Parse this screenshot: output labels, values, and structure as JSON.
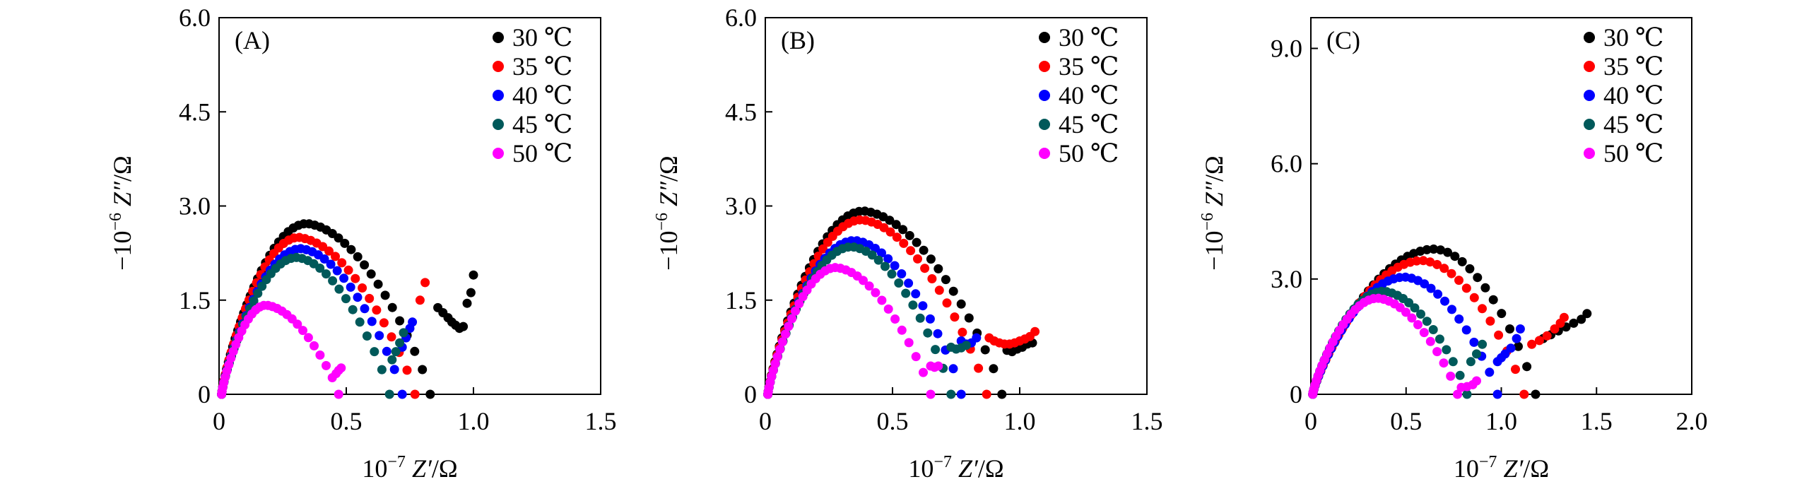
{
  "chart_data": [
    {
      "type": "scatter",
      "panel_label": "(A)",
      "xlabel_prefix": "10",
      "xlabel_exp": "−7",
      "xlabel_var": "Z′",
      "xlabel_unit": "/Ω",
      "ylabel_prefix": "−10",
      "ylabel_exp": "−6",
      "ylabel_var": "Z″",
      "ylabel_unit": "/Ω",
      "xlim": [
        0,
        1.5
      ],
      "ylim": [
        0,
        6.0
      ],
      "xticks": [
        0,
        0.5,
        1.0,
        1.5
      ],
      "xtick_labels": [
        "0",
        "0.5",
        "1.0",
        "1.5"
      ],
      "yticks": [
        0,
        1.5,
        3.0,
        4.5,
        6.0
      ],
      "ytick_labels": [
        "0",
        "1.5",
        "3.0",
        "4.5",
        "6.0"
      ],
      "legend_position": "top-right",
      "series": [
        {
          "name": "30 ℃",
          "color": "#000000",
          "shape": {
            "type": "arc",
            "rs": 0.01,
            "rmax": 0.83,
            "peak": 2.72,
            "peakfrac": 0.41,
            "n": 46,
            "tail": [
              [
                0.86,
                1.38
              ],
              [
                0.88,
                1.3
              ],
              [
                0.9,
                1.22
              ],
              [
                0.915,
                1.15
              ],
              [
                0.93,
                1.1
              ],
              [
                0.945,
                1.05
              ],
              [
                0.96,
                1.08
              ],
              [
                0.975,
                1.45
              ],
              [
                0.99,
                1.62
              ],
              [
                1.0,
                1.9
              ]
            ]
          }
        },
        {
          "name": "35 ℃",
          "color": "#ff0000",
          "shape": {
            "type": "arc",
            "rs": 0.01,
            "rmax": 0.77,
            "peak": 2.5,
            "peakfrac": 0.4,
            "n": 42,
            "tail": [
              [
                0.79,
                1.5
              ],
              [
                0.81,
                1.78
              ]
            ]
          }
        },
        {
          "name": "40 ℃",
          "color": "#0000ff",
          "shape": {
            "type": "arc",
            "rs": 0.01,
            "rmax": 0.72,
            "peak": 2.32,
            "peakfrac": 0.44,
            "n": 40,
            "tail": [
              [
                0.72,
                0.75
              ],
              [
                0.735,
                0.9
              ],
              [
                0.75,
                1.05
              ],
              [
                0.76,
                1.15
              ]
            ]
          }
        },
        {
          "name": "45 ℃",
          "color": "#00595a",
          "shape": {
            "type": "arc",
            "rs": 0.01,
            "rmax": 0.67,
            "peak": 2.18,
            "peakfrac": 0.45,
            "n": 38,
            "tail": [
              [
                0.68,
                0.55
              ],
              [
                0.695,
                0.68
              ],
              [
                0.71,
                0.82
              ],
              [
                0.725,
                0.98
              ]
            ]
          }
        },
        {
          "name": "50 ℃",
          "color": "#ff00ff",
          "shape": {
            "type": "arc",
            "rs": 0.01,
            "rmax": 0.47,
            "peak": 1.42,
            "peakfrac": 0.38,
            "n": 32,
            "tail": [
              [
                0.46,
                0.33
              ],
              [
                0.47,
                0.38
              ],
              [
                0.48,
                0.42
              ]
            ]
          }
        }
      ]
    },
    {
      "type": "scatter",
      "panel_label": "(B)",
      "xlabel_prefix": "10",
      "xlabel_exp": "−7",
      "xlabel_var": "Z′",
      "xlabel_unit": "/Ω",
      "ylabel_prefix": "−10",
      "ylabel_exp": "−6",
      "ylabel_var": "Z″",
      "ylabel_unit": "/Ω",
      "xlim": [
        0,
        1.5
      ],
      "ylim": [
        0,
        6.0
      ],
      "xticks": [
        0,
        0.5,
        1.0,
        1.5
      ],
      "xtick_labels": [
        "0",
        "0.5",
        "1.0",
        "1.5"
      ],
      "yticks": [
        0,
        1.5,
        3.0,
        4.5,
        6.0
      ],
      "ytick_labels": [
        "0",
        "1.5",
        "3.0",
        "4.5",
        "6.0"
      ],
      "legend_position": "top-right",
      "series": [
        {
          "name": "30 ℃",
          "color": "#000000",
          "shape": {
            "type": "arc",
            "rs": 0.01,
            "rmax": 0.93,
            "peak": 2.92,
            "peakfrac": 0.41,
            "n": 48,
            "tail": [
              [
                0.95,
                0.7
              ],
              [
                0.97,
                0.68
              ],
              [
                0.99,
                0.72
              ],
              [
                1.01,
                0.75
              ],
              [
                1.03,
                0.8
              ],
              [
                1.05,
                0.82
              ]
            ]
          }
        },
        {
          "name": "35 ℃",
          "color": "#ff0000",
          "shape": {
            "type": "arc",
            "rs": 0.01,
            "rmax": 0.87,
            "peak": 2.78,
            "peakfrac": 0.43,
            "n": 46,
            "tail": [
              [
                0.88,
                0.9
              ],
              [
                0.9,
                0.85
              ],
              [
                0.92,
                0.82
              ],
              [
                0.94,
                0.8
              ],
              [
                0.96,
                0.8
              ],
              [
                0.98,
                0.82
              ],
              [
                1.0,
                0.85
              ],
              [
                1.02,
                0.88
              ],
              [
                1.04,
                0.92
              ],
              [
                1.06,
                1.0
              ]
            ]
          }
        },
        {
          "name": "40 ℃",
          "color": "#0000ff",
          "shape": {
            "type": "arc",
            "rs": 0.01,
            "rmax": 0.77,
            "peak": 2.45,
            "peakfrac": 0.45,
            "n": 42,
            "tail": [
              [
                0.77,
                0.85
              ],
              [
                0.79,
                0.8
              ],
              [
                0.81,
                0.82
              ],
              [
                0.83,
                0.9
              ]
            ]
          }
        },
        {
          "name": "45 ℃",
          "color": "#00595a",
          "shape": {
            "type": "arc",
            "rs": 0.01,
            "rmax": 0.73,
            "peak": 2.35,
            "peakfrac": 0.46,
            "n": 40,
            "tail": [
              [
                0.73,
                0.75
              ],
              [
                0.75,
                0.72
              ],
              [
                0.77,
                0.74
              ],
              [
                0.79,
                0.78
              ]
            ]
          }
        },
        {
          "name": "50 ℃",
          "color": "#ff00ff",
          "shape": {
            "type": "arc",
            "rs": 0.01,
            "rmax": 0.65,
            "peak": 2.02,
            "peakfrac": 0.42,
            "n": 38,
            "tail": [
              [
                0.65,
                0.45
              ],
              [
                0.665,
                0.43
              ],
              [
                0.68,
                0.45
              ]
            ]
          }
        }
      ]
    },
    {
      "type": "scatter",
      "panel_label": "(C)",
      "xlabel_prefix": "10",
      "xlabel_exp": "−7",
      "xlabel_var": "Z′",
      "xlabel_unit": "/Ω",
      "ylabel_prefix": "−10",
      "ylabel_exp": "−6",
      "ylabel_var": "Z″",
      "ylabel_unit": "/Ω",
      "xlim": [
        0,
        2.0
      ],
      "ylim": [
        0,
        9.8
      ],
      "xticks": [
        0,
        0.5,
        1.0,
        1.5,
        2.0
      ],
      "xtick_labels": [
        "0",
        "0.5",
        "1.0",
        "1.5",
        "2.0"
      ],
      "yticks": [
        0,
        3.0,
        6.0,
        9.0
      ],
      "ytick_labels": [
        "0",
        "3.0",
        "6.0",
        "9.0"
      ],
      "legend_position": "top-right",
      "series": [
        {
          "name": "30 ℃",
          "color": "#000000",
          "shape": {
            "type": "arc",
            "rs": 0.01,
            "rmax": 1.18,
            "peak": 3.78,
            "peakfrac": 0.55,
            "n": 44,
            "tail": [
              [
                1.22,
                1.45
              ],
              [
                1.26,
                1.55
              ],
              [
                1.3,
                1.65
              ],
              [
                1.34,
                1.75
              ],
              [
                1.38,
                1.85
              ],
              [
                1.42,
                1.95
              ],
              [
                1.45,
                2.1
              ]
            ]
          }
        },
        {
          "name": "35 ℃",
          "color": "#ff0000",
          "shape": {
            "type": "arc",
            "rs": 0.01,
            "rmax": 1.12,
            "peak": 3.48,
            "peakfrac": 0.52,
            "n": 42,
            "tail": [
              [
                1.16,
                1.3
              ],
              [
                1.2,
                1.4
              ],
              [
                1.24,
                1.52
              ],
              [
                1.28,
                1.7
              ],
              [
                1.31,
                1.85
              ],
              [
                1.33,
                2.0
              ]
            ]
          }
        },
        {
          "name": "40 ℃",
          "color": "#0000ff",
          "shape": {
            "type": "arc",
            "rs": 0.01,
            "rmax": 0.98,
            "peak": 3.05,
            "peakfrac": 0.5,
            "n": 40,
            "tail": [
              [
                0.98,
                0.85
              ],
              [
                1.0,
                0.95
              ],
              [
                1.02,
                1.05
              ],
              [
                1.05,
                1.2
              ],
              [
                1.08,
                1.45
              ],
              [
                1.1,
                1.7
              ]
            ]
          }
        },
        {
          "name": "45 ℃",
          "color": "#00595a",
          "shape": {
            "type": "arc",
            "rs": 0.01,
            "rmax": 0.82,
            "peak": 2.68,
            "peakfrac": 0.46,
            "n": 38,
            "tail": [
              [
                0.84,
                0.85
              ],
              [
                0.87,
                1.05
              ],
              [
                0.9,
                1.3
              ]
            ]
          }
        },
        {
          "name": "50 ℃",
          "color": "#ff00ff",
          "shape": {
            "type": "arc",
            "rs": 0.01,
            "rmax": 0.77,
            "peak": 2.5,
            "peakfrac": 0.45,
            "n": 36,
            "tail": [
              [
                0.79,
                0.18
              ],
              [
                0.82,
                0.2
              ],
              [
                0.85,
                0.25
              ],
              [
                0.87,
                0.35
              ]
            ]
          }
        }
      ]
    }
  ]
}
